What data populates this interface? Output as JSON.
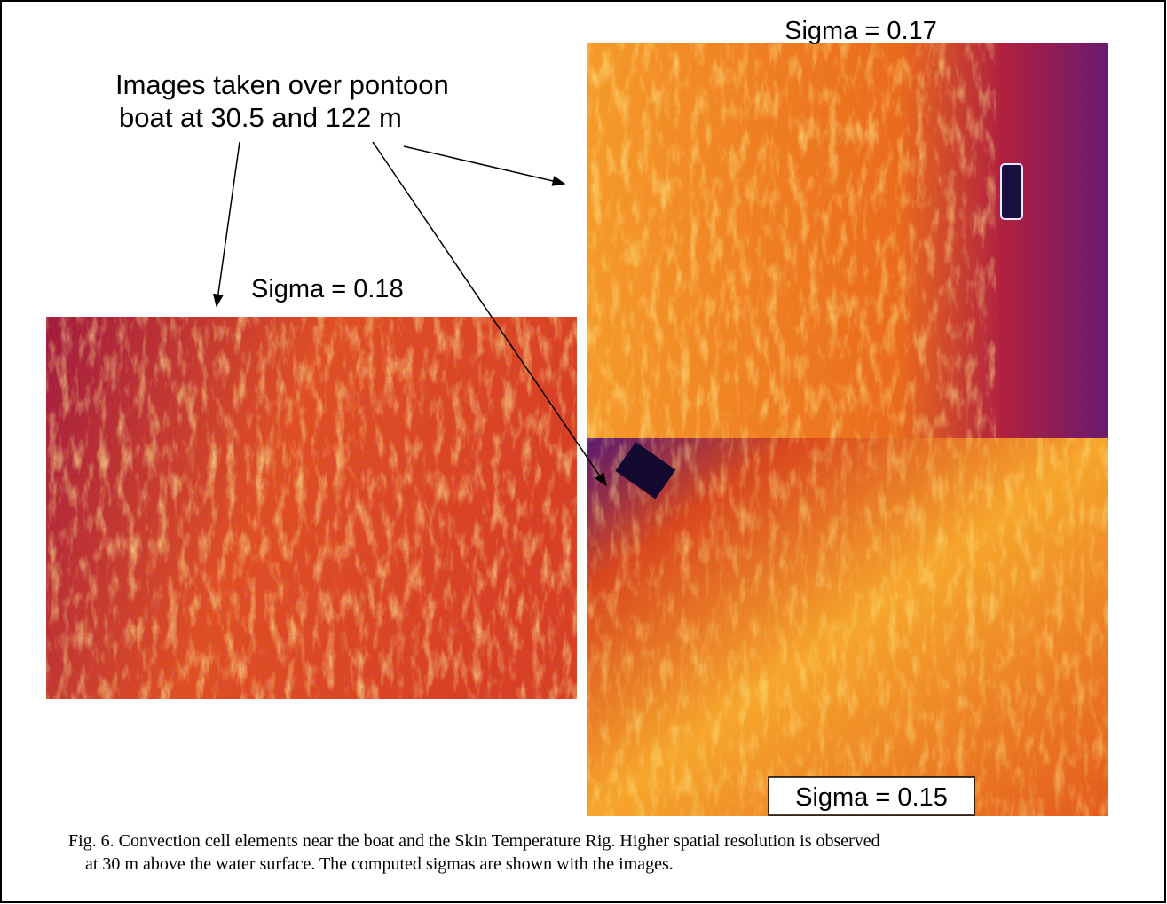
{
  "annotation": {
    "lines": [
      "Images taken over pontoon",
      "boat at 30.5 and 122 m"
    ]
  },
  "images": [
    {
      "label": "Sigma = 0.17"
    },
    {
      "label": "Sigma = 0.18"
    },
    {
      "label": "Sigma = 0.15"
    }
  ],
  "caption": {
    "lines": [
      "Fig. 6.  Convection cell elements near the boat and the Skin Temperature Rig.  Higher spatial resolution is observed",
      "at 30 m above the water surface.  The computed sigmas are shown with the images."
    ]
  }
}
